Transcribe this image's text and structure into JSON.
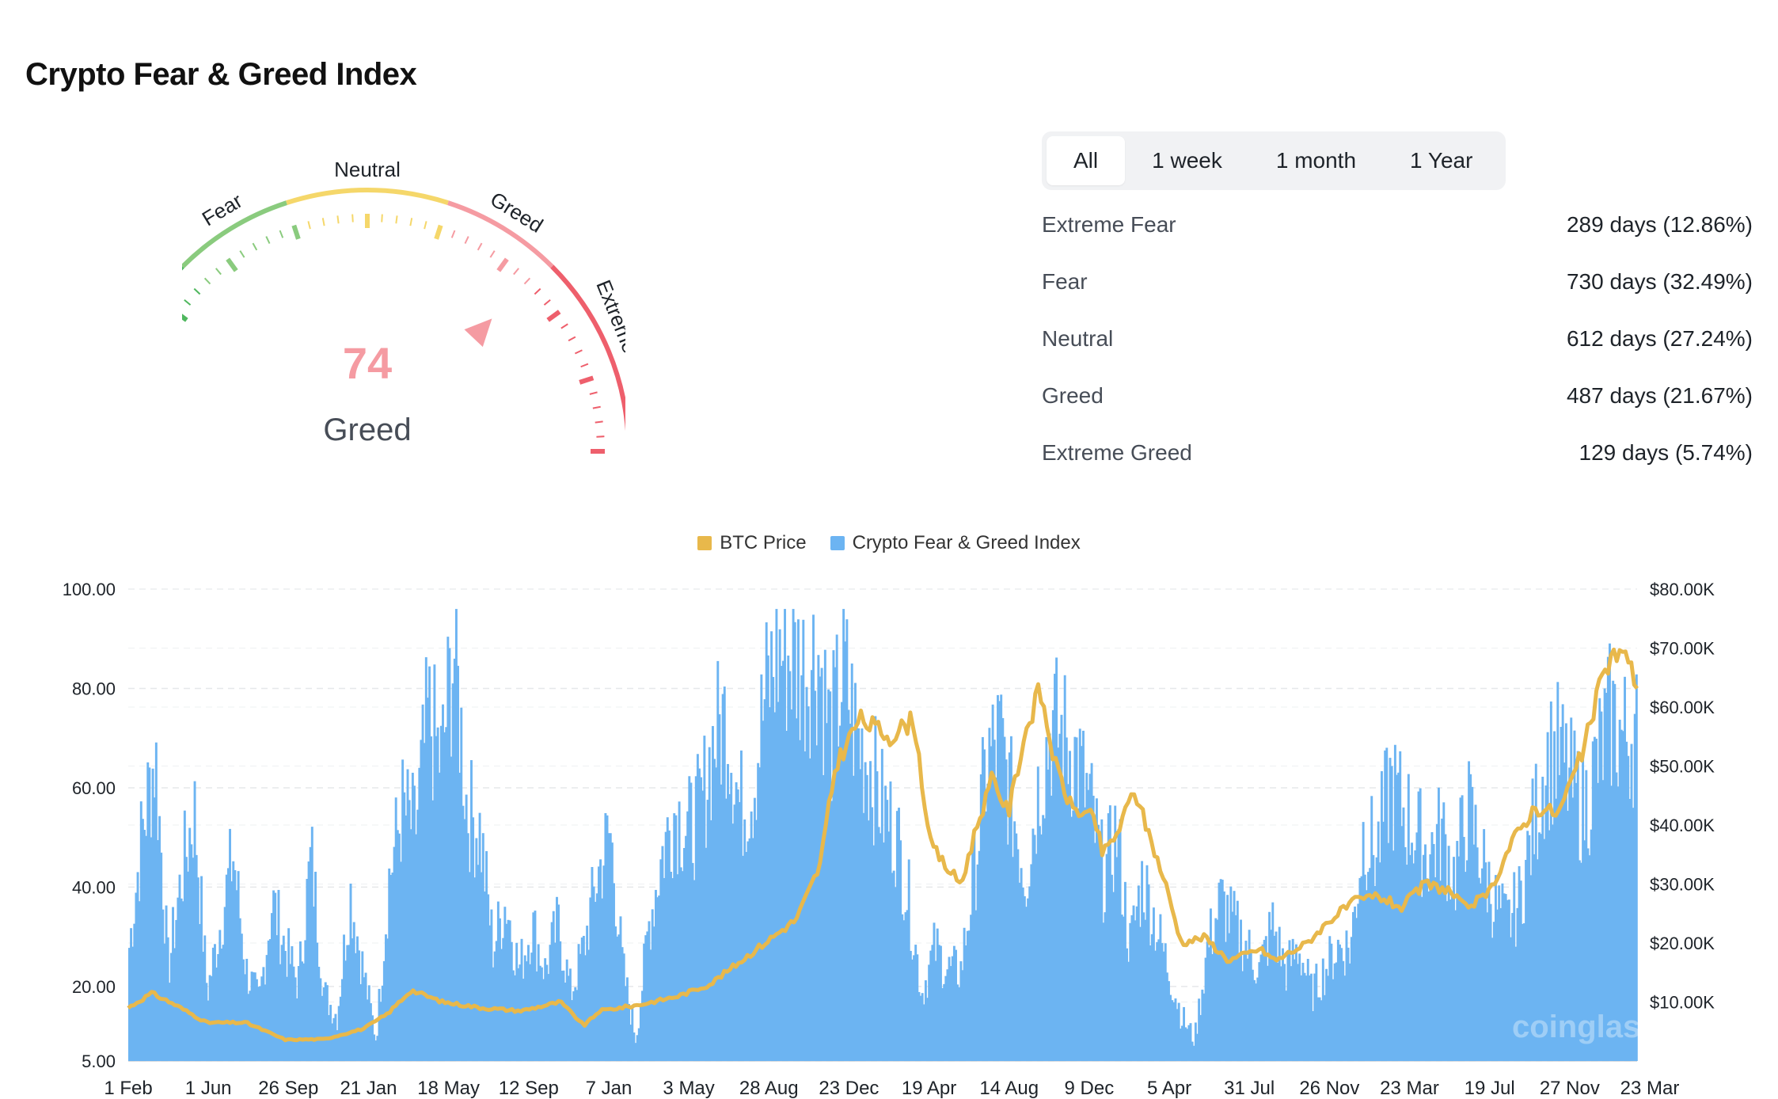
{
  "page": {
    "title": "Crypto Fear & Greed Index"
  },
  "gauge": {
    "value": "74",
    "classification": "Greed",
    "value_number": 74,
    "zone_labels": [
      "Extreme Fear",
      "Fear",
      "Neutral",
      "Greed",
      "Extreme Greed"
    ],
    "zone_colors": [
      "#4fb75e",
      "#8acb7e",
      "#f5d76a",
      "#f59ba2",
      "#ee5f6c"
    ]
  },
  "tabs": [
    {
      "label": "All",
      "active": true
    },
    {
      "label": "1 week",
      "active": false
    },
    {
      "label": "1 month",
      "active": false
    },
    {
      "label": "1 Year",
      "active": false
    }
  ],
  "stats": [
    {
      "label": "Extreme Fear",
      "value": "289 days (12.86%)"
    },
    {
      "label": "Fear",
      "value": "730 days (32.49%)"
    },
    {
      "label": "Neutral",
      "value": "612 days (27.24%)"
    },
    {
      "label": "Greed",
      "value": "487 days (21.67%)"
    },
    {
      "label": "Extreme Greed",
      "value": "129 days (5.74%)"
    }
  ],
  "legend": [
    {
      "label": "BTC Price",
      "color": "#e8b84b"
    },
    {
      "label": "Crypto Fear & Greed Index",
      "color": "#6cb4f2"
    }
  ],
  "watermark": "coinglass",
  "chart_data": {
    "type": "area",
    "x_ticks": [
      "1 Feb",
      "1 Jun",
      "26 Sep",
      "21 Jan",
      "18 May",
      "12 Sep",
      "7 Jan",
      "3 May",
      "28 Aug",
      "23 Dec",
      "19 Apr",
      "14 Aug",
      "9 Dec",
      "5 Apr",
      "31 Jul",
      "26 Nov",
      "23 Mar",
      "19 Jul",
      "27 Nov",
      "23 Mar"
    ],
    "y_left": {
      "ticks": [
        "5.00",
        "20.00",
        "40.00",
        "60.00",
        "80.00",
        "100.00"
      ],
      "tick_values": [
        5,
        20,
        40,
        60,
        80,
        100
      ],
      "range": [
        5,
        100
      ]
    },
    "y_right": {
      "ticks": [
        "$10.00K",
        "$20.00K",
        "$30.00K",
        "$40.00K",
        "$50.00K",
        "$60.00K",
        "$70.00K",
        "$80.00K"
      ],
      "tick_values": [
        10000,
        20000,
        30000,
        40000,
        50000,
        60000,
        70000,
        80000
      ],
      "range": [
        0,
        80000
      ]
    },
    "grid": true,
    "legend_position": "top-center",
    "series": [
      {
        "name": "Crypto Fear & Greed Index",
        "axis": "left",
        "color": "#6cb4f2",
        "points": [
          [
            0,
            30
          ],
          [
            1,
            55
          ],
          [
            2,
            72
          ],
          [
            3,
            25
          ],
          [
            4,
            45
          ],
          [
            5,
            60
          ],
          [
            6,
            20
          ],
          [
            7,
            35
          ],
          [
            8,
            50
          ],
          [
            9,
            25
          ],
          [
            10,
            18
          ],
          [
            11,
            40
          ],
          [
            12,
            30
          ],
          [
            13,
            22
          ],
          [
            14,
            50
          ],
          [
            15,
            20
          ],
          [
            16,
            15
          ],
          [
            17,
            42
          ],
          [
            18,
            25
          ],
          [
            19,
            10
          ],
          [
            20,
            45
          ],
          [
            21,
            60
          ],
          [
            22,
            55
          ],
          [
            23,
            80
          ],
          [
            24,
            70
          ],
          [
            25,
            95
          ],
          [
            26,
            60
          ],
          [
            27,
            55
          ],
          [
            28,
            30
          ],
          [
            29,
            40
          ],
          [
            30,
            25
          ],
          [
            31,
            35
          ],
          [
            32,
            25
          ],
          [
            33,
            35
          ],
          [
            34,
            20
          ],
          [
            35,
            30
          ],
          [
            36,
            45
          ],
          [
            37,
            55
          ],
          [
            38,
            25
          ],
          [
            39,
            10
          ],
          [
            40,
            35
          ],
          [
            41,
            50
          ],
          [
            42,
            60
          ],
          [
            43,
            55
          ],
          [
            44,
            60
          ],
          [
            45,
            75
          ],
          [
            46,
            80
          ],
          [
            47,
            60
          ],
          [
            48,
            65
          ],
          [
            49,
            85
          ],
          [
            50,
            94
          ],
          [
            51,
            93
          ],
          [
            52,
            90
          ],
          [
            53,
            94
          ],
          [
            54,
            75
          ],
          [
            55,
            90
          ],
          [
            56,
            75
          ],
          [
            57,
            70
          ],
          [
            58,
            60
          ],
          [
            59,
            55
          ],
          [
            60,
            40
          ],
          [
            61,
            20
          ],
          [
            62,
            30
          ],
          [
            63,
            25
          ],
          [
            64,
            25
          ],
          [
            65,
            45
          ],
          [
            66,
            70
          ],
          [
            67,
            75
          ],
          [
            68,
            60
          ],
          [
            69,
            45
          ],
          [
            70,
            65
          ],
          [
            71,
            78
          ],
          [
            72,
            75
          ],
          [
            73,
            70
          ],
          [
            74,
            60
          ],
          [
            75,
            45
          ],
          [
            76,
            55
          ],
          [
            77,
            30
          ],
          [
            78,
            45
          ],
          [
            79,
            35
          ],
          [
            80,
            25
          ],
          [
            81,
            15
          ],
          [
            82,
            10
          ],
          [
            83,
            30
          ],
          [
            84,
            40
          ],
          [
            85,
            35
          ],
          [
            86,
            30
          ],
          [
            87,
            25
          ],
          [
            88,
            35
          ],
          [
            89,
            25
          ],
          [
            90,
            30
          ],
          [
            91,
            20
          ],
          [
            92,
            25
          ],
          [
            93,
            30
          ],
          [
            94,
            30
          ],
          [
            95,
            55
          ],
          [
            96,
            50
          ],
          [
            97,
            65
          ],
          [
            98,
            60
          ],
          [
            99,
            55
          ],
          [
            100,
            50
          ],
          [
            101,
            55
          ],
          [
            102,
            45
          ],
          [
            103,
            60
          ],
          [
            104,
            50
          ],
          [
            105,
            40
          ],
          [
            106,
            35
          ],
          [
            107,
            40
          ],
          [
            108,
            55
          ],
          [
            109,
            70
          ],
          [
            110,
            72
          ],
          [
            111,
            65
          ],
          [
            112,
            60
          ],
          [
            113,
            70
          ],
          [
            114,
            80
          ],
          [
            115,
            75
          ],
          [
            116,
            78
          ]
        ]
      },
      {
        "name": "BTC Price",
        "axis": "right",
        "color": "#e8b84b",
        "points": [
          [
            0,
            9000
          ],
          [
            3,
            11500
          ],
          [
            6,
            9500
          ],
          [
            10,
            6500
          ],
          [
            15,
            6500
          ],
          [
            20,
            3600
          ],
          [
            25,
            3700
          ],
          [
            30,
            5500
          ],
          [
            33,
            8000
          ],
          [
            36,
            12000
          ],
          [
            40,
            10000
          ],
          [
            45,
            9000
          ],
          [
            50,
            8500
          ],
          [
            55,
            10000
          ],
          [
            58,
            6000
          ],
          [
            60,
            8500
          ],
          [
            65,
            9500
          ],
          [
            70,
            11000
          ],
          [
            74,
            13000
          ],
          [
            80,
            19000
          ],
          [
            85,
            24000
          ],
          [
            88,
            33000
          ],
          [
            90,
            50000
          ],
          [
            93,
            58000
          ],
          [
            97,
            55000
          ],
          [
            100,
            58000
          ],
          [
            102,
            37000
          ],
          [
            104,
            33000
          ],
          [
            106,
            30000
          ],
          [
            108,
            40000
          ],
          [
            110,
            48000
          ],
          [
            112,
            42000
          ],
          [
            114,
            55000
          ],
          [
            116,
            63000
          ],
          [
            118,
            50000
          ],
          [
            120,
            43000
          ],
          [
            123,
            41000
          ],
          [
            124,
            35000
          ],
          [
            126,
            39000
          ],
          [
            128,
            46000
          ],
          [
            130,
            38000
          ],
          [
            132,
            30000
          ],
          [
            134,
            20000
          ],
          [
            137,
            21000
          ],
          [
            140,
            17000
          ],
          [
            144,
            19000
          ],
          [
            146,
            17000
          ],
          [
            150,
            20000
          ],
          [
            153,
            24000
          ],
          [
            156,
            27000
          ],
          [
            159,
            28000
          ],
          [
            162,
            26000
          ],
          [
            165,
            30000
          ],
          [
            168,
            29000
          ],
          [
            170,
            26000
          ],
          [
            173,
            28000
          ],
          [
            176,
            37000
          ],
          [
            179,
            43000
          ],
          [
            182,
            42000
          ],
          [
            185,
            52000
          ],
          [
            188,
            67000
          ],
          [
            190,
            70000
          ],
          [
            192,
            64000
          ]
        ]
      }
    ]
  }
}
